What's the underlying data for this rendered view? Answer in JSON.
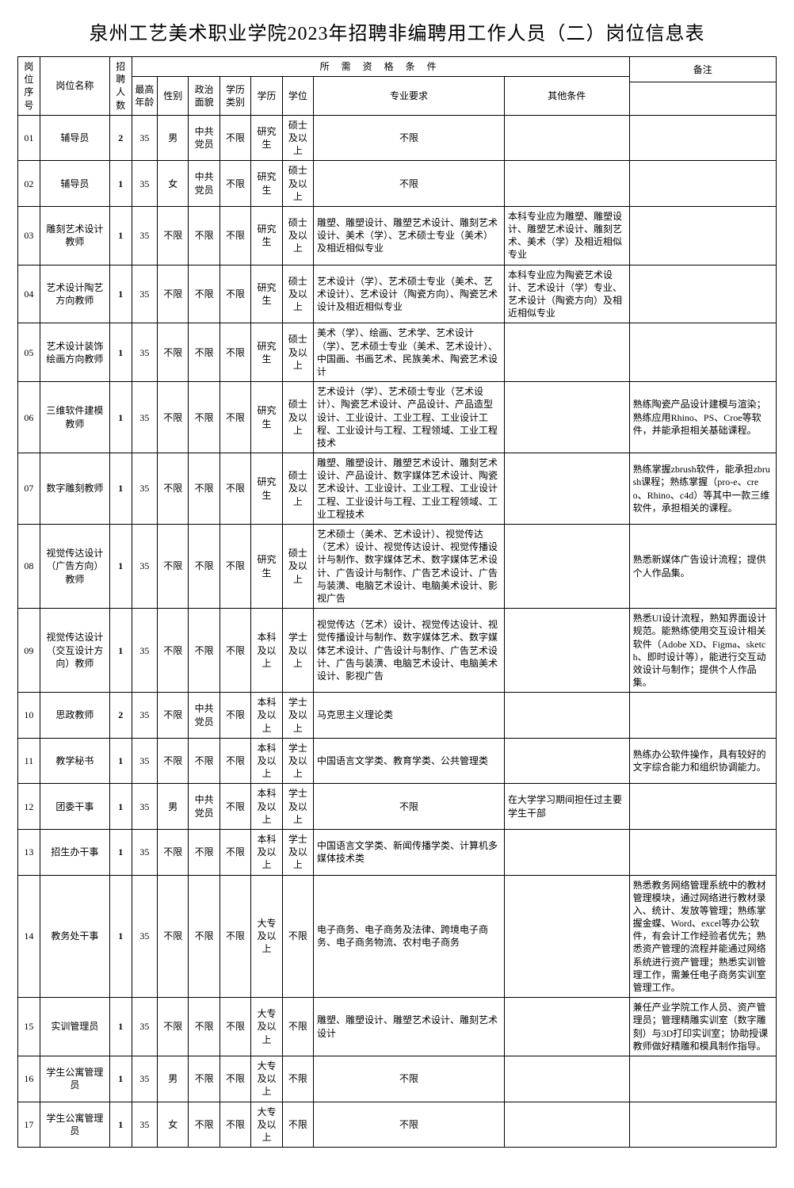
{
  "title": "泉州工艺美术职业学院2023年招聘非编聘用工作人员（二）岗位信息表",
  "headers": {
    "seq": "岗位序号",
    "name": "岗位名称",
    "count": "招聘人数",
    "qual_group": "所 需 资 格 条 件",
    "note": "备注",
    "age": "最高年龄",
    "sex": "性别",
    "politics": "政治面貌",
    "edu_type": "学历类别",
    "edu": "学历",
    "degree": "学位",
    "major": "专业要求",
    "other": "其他条件"
  },
  "rows": [
    {
      "seq": "01",
      "name": "辅导员",
      "count": "2",
      "age": "35",
      "sex": "男",
      "pol": "中共党员",
      "edutp": "不限",
      "edu": "研究生",
      "deg": "硕士及以上",
      "major": "不限",
      "other": "",
      "note": ""
    },
    {
      "seq": "02",
      "name": "辅导员",
      "count": "1",
      "age": "35",
      "sex": "女",
      "pol": "中共党员",
      "edutp": "不限",
      "edu": "研究生",
      "deg": "硕士及以上",
      "major": "不限",
      "other": "",
      "note": ""
    },
    {
      "seq": "03",
      "name": "雕刻艺术设计教师",
      "count": "1",
      "age": "35",
      "sex": "不限",
      "pol": "不限",
      "edutp": "不限",
      "edu": "研究生",
      "deg": "硕士及以上",
      "major": "雕塑、雕塑设计、雕塑艺术设计、雕刻艺术设计、美术（学）、艺术硕士专业（美术）及相近相似专业",
      "other": "本科专业应为雕塑、雕塑设计、雕塑艺术设计、雕刻艺术、美术（学）及相近相似专业",
      "note": ""
    },
    {
      "seq": "04",
      "name": "艺术设计陶艺方向教师",
      "count": "1",
      "age": "35",
      "sex": "不限",
      "pol": "不限",
      "edutp": "不限",
      "edu": "研究生",
      "deg": "硕士及以上",
      "major": "艺术设计（学）、艺术硕士专业（美术、艺术设计）、艺术设计（陶瓷方向）、陶瓷艺术设计及相近相似专业",
      "other": "本科专业应为陶瓷艺术设计、艺术设计（学）专业、艺术设计（陶瓷方向）及相近相似专业",
      "note": ""
    },
    {
      "seq": "05",
      "name": "艺术设计装饰绘画方向教师",
      "count": "1",
      "age": "35",
      "sex": "不限",
      "pol": "不限",
      "edutp": "不限",
      "edu": "研究生",
      "deg": "硕士及以上",
      "major": "美术（学）、绘画、艺术学、艺术设计（学）、艺术硕士专业（美术、艺术设计）、中国画、书画艺术、民族美术、陶瓷艺术设计",
      "other": "",
      "note": ""
    },
    {
      "seq": "06",
      "name": "三维软件建模教师",
      "count": "1",
      "age": "35",
      "sex": "不限",
      "pol": "不限",
      "edutp": "不限",
      "edu": "研究生",
      "deg": "硕士及以上",
      "major": "艺术设计（学）、艺术硕士专业（艺术设计）、陶瓷艺术设计、产品设计、产品造型设计、工业设计、工业工程、工业设计工程、工业设计与工程、工程领域、工业工程技术",
      "other": "",
      "note": "熟练陶瓷产品设计建模与渲染；熟练应用Rhino、PS、Croe等软件，并能承担相关基础课程。"
    },
    {
      "seq": "07",
      "name": "数字雕刻教师",
      "count": "1",
      "age": "35",
      "sex": "不限",
      "pol": "不限",
      "edutp": "不限",
      "edu": "研究生",
      "deg": "硕士及以上",
      "major": "雕塑、雕塑设计、雕塑艺术设计、雕刻艺术设计、产品设计、数字媒体艺术设计、陶瓷艺术设计、工业设计、工业工程、工业设计工程、工业设计与工程、工业工程领域、工业工程技术",
      "other": "",
      "note": "熟练掌握zbrush软件，能承担zbrush课程；熟练掌握（pro-e、creo、Rhino、c4d）等其中一款三维软件，承担相关的课程。"
    },
    {
      "seq": "08",
      "name": "视觉传达设计（广告方向）教师",
      "count": "1",
      "age": "35",
      "sex": "不限",
      "pol": "不限",
      "edutp": "不限",
      "edu": "研究生",
      "deg": "硕士及以上",
      "major": "艺术硕士（美术、艺术设计）、视觉传达（艺术）设计、视觉传达设计、视觉传播设计与制作、数字媒体艺术、数字媒体艺术设计、广告设计与制作、广告艺术设计、广告与装潢、电脑艺术设计、电脑美术设计、影视广告",
      "other": "",
      "note": "熟悉新媒体广告设计流程；提供个人作品集。"
    },
    {
      "seq": "09",
      "name": "视觉传达设计（交互设计方向）教师",
      "count": "1",
      "age": "35",
      "sex": "不限",
      "pol": "不限",
      "edutp": "不限",
      "edu": "本科及以上",
      "deg": "学士及以上",
      "major": "视觉传达（艺术）设计、视觉传达设计、视觉传播设计与制作、数字媒体艺术、数字媒体艺术设计、广告设计与制作、广告艺术设计、广告与装潢、电脑艺术设计、电脑美术设计、影视广告",
      "other": "",
      "note": "熟悉UI设计流程，熟知界面设计规范。能熟练使用交互设计相关软件（Adobe XD、Figma、sketch、即时设计等），能进行交互动效设计与制作；提供个人作品集。"
    },
    {
      "seq": "10",
      "name": "思政教师",
      "count": "2",
      "age": "35",
      "sex": "不限",
      "pol": "中共党员",
      "edutp": "不限",
      "edu": "本科及以上",
      "deg": "学士及以上",
      "major": "马克思主义理论类",
      "other": "",
      "note": ""
    },
    {
      "seq": "11",
      "name": "教学秘书",
      "count": "1",
      "age": "35",
      "sex": "不限",
      "pol": "不限",
      "edutp": "不限",
      "edu": "本科及以上",
      "deg": "学士及以上",
      "major": "中国语言文学类、教育学类、公共管理类",
      "other": "",
      "note": "熟练办公软件操作，具有较好的文字综合能力和组织协调能力。"
    },
    {
      "seq": "12",
      "name": "团委干事",
      "count": "1",
      "age": "35",
      "sex": "男",
      "pol": "中共党员",
      "edutp": "不限",
      "edu": "本科及以上",
      "deg": "学士及以上",
      "major": "不限",
      "other": "在大学学习期间担任过主要学生干部",
      "note": ""
    },
    {
      "seq": "13",
      "name": "招生办干事",
      "count": "1",
      "age": "35",
      "sex": "不限",
      "pol": "不限",
      "edutp": "不限",
      "edu": "本科及以上",
      "deg": "学士及以上",
      "major": "中国语言文学类、新闻传播学类、计算机多媒体技术类",
      "other": "",
      "note": ""
    },
    {
      "seq": "14",
      "name": "教务处干事",
      "count": "1",
      "age": "35",
      "sex": "不限",
      "pol": "不限",
      "edutp": "不限",
      "edu": "大专及以上",
      "deg": "不限",
      "major": "电子商务、电子商务及法律、跨境电子商务、电子商务物流、农村电子商务",
      "other": "",
      "note": "熟悉教务网络管理系统中的教材管理模块，通过网络进行教材录入、统计、发放等管理；熟练掌握金蝶、Word、excel等办公软件，有会计工作经验者优先；熟悉资产管理的流程并能通过网络系统进行资产管理；熟悉实训管理工作，需兼任电子商务实训室管理工作。"
    },
    {
      "seq": "15",
      "name": "实训管理员",
      "count": "1",
      "age": "35",
      "sex": "不限",
      "pol": "不限",
      "edutp": "不限",
      "edu": "大专及以上",
      "deg": "不限",
      "major": "雕塑、雕塑设计、雕塑艺术设计、雕刻艺术设计",
      "other": "",
      "note": "兼任产业学院工作人员、资产管理员；管理精雕实训室（数字雕刻）与3D打印实训室；协助授课教师做好精雕和模具制作指导。"
    },
    {
      "seq": "16",
      "name": "学生公寓管理员",
      "count": "1",
      "age": "35",
      "sex": "男",
      "pol": "不限",
      "edutp": "不限",
      "edu": "大专及以上",
      "deg": "不限",
      "major": "不限",
      "other": "",
      "note": ""
    },
    {
      "seq": "17",
      "name": "学生公寓管理员",
      "count": "1",
      "age": "35",
      "sex": "女",
      "pol": "不限",
      "edutp": "不限",
      "edu": "大专及以上",
      "deg": "不限",
      "major": "不限",
      "other": "",
      "note": ""
    }
  ],
  "colors": {
    "border": "#000000",
    "background": "#ffffff",
    "text": "#000000"
  },
  "typography": {
    "title_fontsize": 24,
    "cell_fontsize": 12,
    "font_family": "SimSun"
  }
}
